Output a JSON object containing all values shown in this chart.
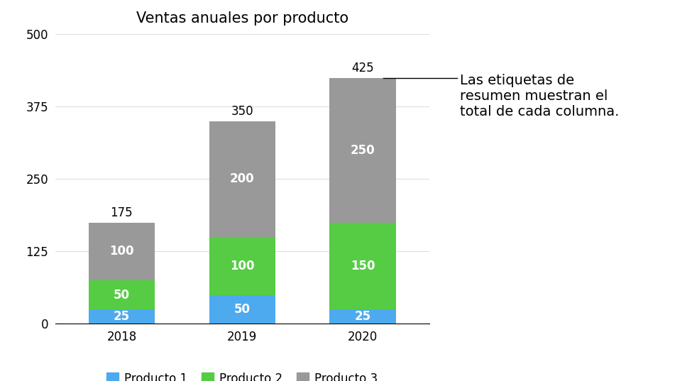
{
  "title": "Ventas anuales por producto",
  "years": [
    "2018",
    "2019",
    "2020"
  ],
  "producto1": [
    25,
    50,
    25
  ],
  "producto2": [
    50,
    100,
    150
  ],
  "producto3": [
    100,
    200,
    250
  ],
  "totals": [
    175,
    350,
    425
  ],
  "color1": "#4DAAEE",
  "color2": "#55CC44",
  "color3": "#999999",
  "ylim": [
    0,
    500
  ],
  "yticks": [
    0,
    125,
    250,
    375,
    500
  ],
  "legend_labels": [
    "Producto 1",
    "Producto 2",
    "Producto 3"
  ],
  "annotation_text": "Las etiquetas de\nresumen muestran el\ntotal de cada columna.",
  "background_color": "#ffffff",
  "title_fontsize": 15,
  "label_fontsize": 12,
  "tick_fontsize": 12,
  "annotation_fontsize": 14,
  "bar_width": 0.55
}
